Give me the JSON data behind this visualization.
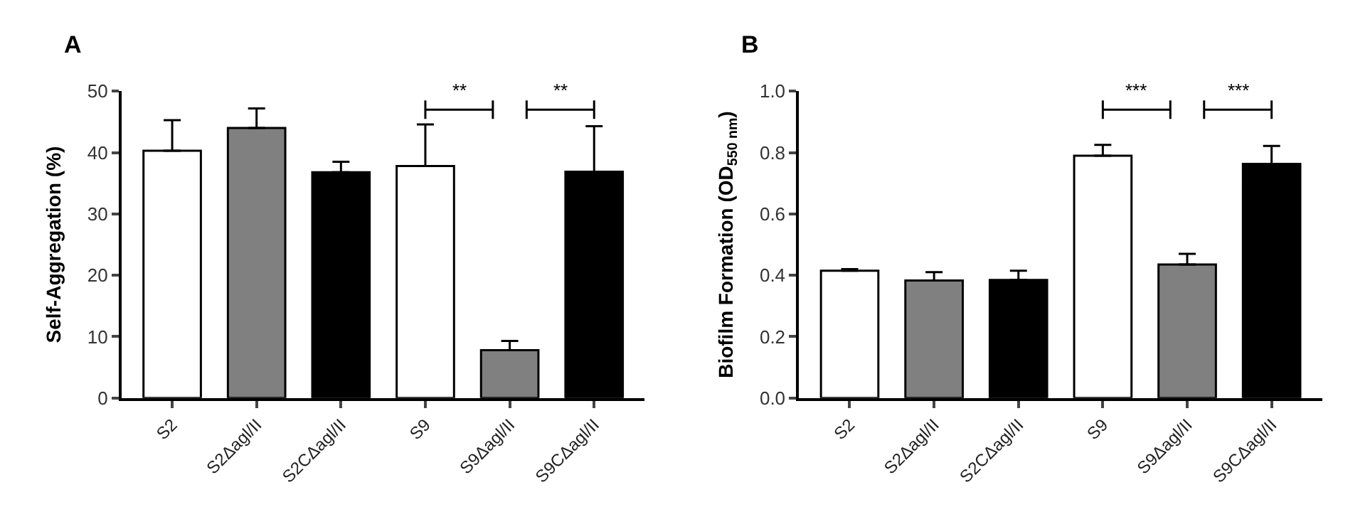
{
  "chart_data": [
    {
      "type": "bar",
      "title": "A",
      "ylabel": "Self-Aggregation (%)",
      "categories": [
        "S2",
        "S2Δagl/II",
        "S2CΔagl/II",
        "S9",
        "S9Δagl/II",
        "S9CΔagl/II"
      ],
      "values": [
        40.3,
        44.0,
        36.8,
        37.8,
        7.8,
        36.9
      ],
      "errors": [
        [
          40.3,
          45.3
        ],
        [
          44.0,
          47.2
        ],
        [
          36.8,
          38.5
        ],
        [
          37.8,
          44.6
        ],
        [
          7.8,
          9.3
        ],
        [
          36.9,
          44.3
        ]
      ],
      "colors": [
        "#ffffff",
        "#808080",
        "#000000",
        "#ffffff",
        "#808080",
        "#000000"
      ],
      "ylim": [
        0,
        50
      ],
      "yticks": [
        0,
        10,
        20,
        30,
        40,
        50
      ],
      "annotations": [
        "**",
        "**"
      ]
    },
    {
      "type": "bar",
      "title": "B",
      "ylabel": "Biofilm Formation (OD$_{550 nm}$)",
      "categories": [
        "S2",
        "S2Δagl/II",
        "S2CΔagl/II",
        "S9",
        "S9Δagl/II",
        "S9CΔagl/II"
      ],
      "values": [
        0.415,
        0.383,
        0.385,
        0.79,
        0.435,
        0.763
      ],
      "errors": [
        [
          0.415,
          0.42
        ],
        [
          0.383,
          0.41
        ],
        [
          0.385,
          0.415
        ],
        [
          0.79,
          0.825
        ],
        [
          0.435,
          0.47
        ],
        [
          0.763,
          0.822
        ]
      ],
      "colors": [
        "#ffffff",
        "#808080",
        "#000000",
        "#ffffff",
        "#808080",
        "#000000"
      ],
      "ylim": [
        0,
        1.0
      ],
      "yticks": [
        {
          "value": 0,
          "label": "0.0"
        },
        {
          "value": 0.2,
          "label": "0.2"
        },
        {
          "value": 0.4,
          "label": "0.4"
        },
        {
          "value": 0.6,
          "label": "0.6"
        },
        {
          "value": 0.8,
          "label": "0.8"
        },
        {
          "value": 1.0,
          "label": "1.0"
        }
      ],
      "annotations": [
        "***",
        "***"
      ]
    }
  ]
}
